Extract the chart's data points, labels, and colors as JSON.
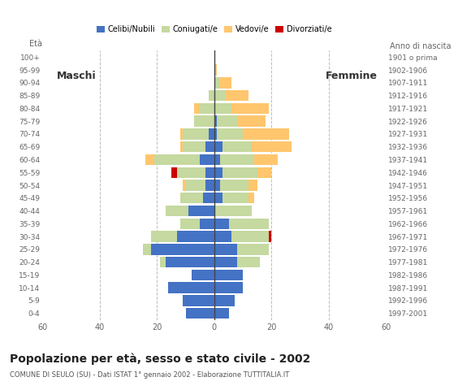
{
  "age_groups": [
    "0-4",
    "5-9",
    "10-14",
    "15-19",
    "20-24",
    "25-29",
    "30-34",
    "35-39",
    "40-44",
    "45-49",
    "50-54",
    "55-59",
    "60-64",
    "65-69",
    "70-74",
    "75-79",
    "80-84",
    "85-89",
    "90-94",
    "95-99",
    "100+"
  ],
  "birth_years": [
    "1997-2001",
    "1992-1996",
    "1987-1991",
    "1982-1986",
    "1977-1981",
    "1972-1976",
    "1967-1971",
    "1962-1966",
    "1957-1961",
    "1952-1956",
    "1947-1951",
    "1942-1946",
    "1937-1941",
    "1932-1936",
    "1927-1931",
    "1922-1926",
    "1917-1921",
    "1912-1916",
    "1907-1911",
    "1902-1906",
    "1901 o prima"
  ],
  "males": {
    "celibe": [
      10,
      11,
      16,
      8,
      17,
      22,
      13,
      5,
      9,
      4,
      3,
      3,
      5,
      3,
      2,
      0,
      0,
      0,
      0,
      0,
      0
    ],
    "coniugato": [
      0,
      0,
      0,
      0,
      2,
      3,
      9,
      7,
      8,
      8,
      7,
      10,
      16,
      8,
      9,
      7,
      5,
      2,
      0,
      0,
      0
    ],
    "vedovo": [
      0,
      0,
      0,
      0,
      0,
      0,
      0,
      0,
      0,
      0,
      1,
      0,
      3,
      1,
      1,
      0,
      2,
      0,
      0,
      0,
      0
    ],
    "divorziato": [
      0,
      0,
      0,
      0,
      0,
      0,
      0,
      0,
      0,
      0,
      0,
      2,
      0,
      0,
      0,
      0,
      0,
      0,
      0,
      0,
      0
    ]
  },
  "females": {
    "nubile": [
      5,
      7,
      10,
      10,
      8,
      8,
      6,
      5,
      0,
      3,
      2,
      3,
      2,
      3,
      1,
      1,
      0,
      0,
      0,
      0,
      0
    ],
    "coniugata": [
      0,
      0,
      0,
      0,
      8,
      11,
      13,
      14,
      13,
      9,
      10,
      12,
      12,
      10,
      9,
      7,
      6,
      4,
      2,
      0,
      0
    ],
    "vedova": [
      0,
      0,
      0,
      0,
      0,
      0,
      0,
      0,
      0,
      2,
      3,
      5,
      8,
      14,
      16,
      10,
      13,
      8,
      4,
      1,
      0
    ],
    "divorziata": [
      0,
      0,
      0,
      0,
      0,
      0,
      1,
      0,
      0,
      0,
      0,
      0,
      0,
      0,
      0,
      0,
      0,
      0,
      0,
      0,
      0
    ]
  },
  "colors": {
    "celibe": "#4472c4",
    "coniugato": "#c5d9a0",
    "vedovo": "#ffc66d",
    "divorziato": "#cc0000"
  },
  "xlim": 60,
  "title": "Popolazione per età, sesso e stato civile - 2002",
  "subtitle": "COMUNE DI SEULO (SU) - Dati ISTAT 1° gennaio 2002 - Elaborazione TUTTITALIA.IT",
  "label_eta": "Età",
  "label_anno": "Anno di nascita",
  "label_maschi": "Maschi",
  "label_femmine": "Femmine",
  "legend_labels": [
    "Celibi/Nubili",
    "Coniugati/e",
    "Vedovi/e",
    "Divorziati/e"
  ]
}
